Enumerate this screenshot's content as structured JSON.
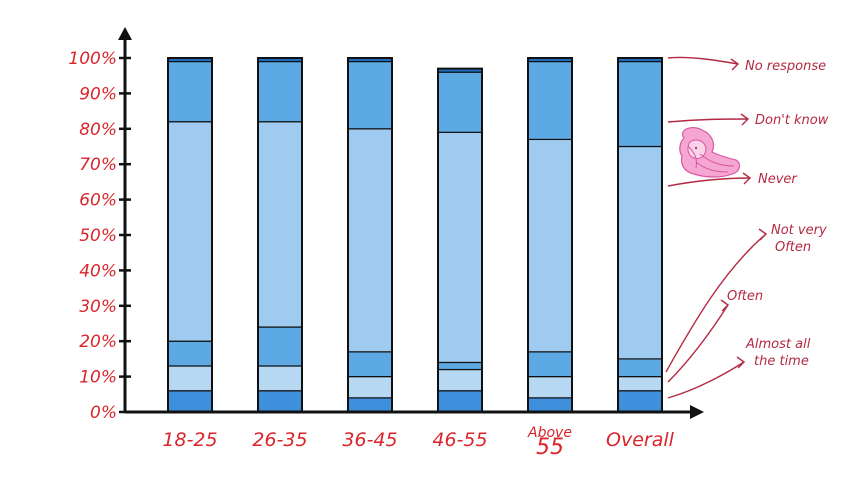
{
  "chart_data": {
    "type": "bar",
    "stacked": true,
    "categories": [
      [
        "18-25"
      ],
      [
        "26-35"
      ],
      [
        "36-45"
      ],
      [
        "46-55"
      ],
      [
        "Above",
        "55"
      ],
      [
        "Overall"
      ]
    ],
    "yticks": [
      "0%",
      "10%",
      "20%",
      "30%",
      "40%",
      "50%",
      "60%",
      "70%",
      "80%",
      "90%",
      "100%"
    ],
    "ylim": [
      0,
      100
    ],
    "series": [
      {
        "name": "Almost all the time",
        "color": "#3e8fdc",
        "values": [
          6,
          6,
          4,
          6,
          4,
          6
        ]
      },
      {
        "name": "Often",
        "color": "#b6d8f2",
        "values": [
          7,
          7,
          6,
          6,
          6,
          4
        ]
      },
      {
        "name": "Not very Often",
        "color": "#5da9e4",
        "values": [
          7,
          11,
          7,
          2,
          7,
          5
        ]
      },
      {
        "name": "Never",
        "color": "#9ecbef",
        "values": [
          62,
          58,
          63,
          65,
          60,
          60
        ]
      },
      {
        "name": "Don't know",
        "color": "#5da9e4",
        "values": [
          17,
          17,
          19,
          17,
          22,
          24
        ]
      },
      {
        "name": "No response",
        "color": "#1f6fc4",
        "values": [
          1,
          1,
          1,
          1,
          1,
          1
        ]
      }
    ],
    "legend": {
      "placement": "right",
      "labels": [
        [
          "No response"
        ],
        [
          "Don't know"
        ],
        [
          "Never"
        ],
        [
          "Not very",
          "Often"
        ],
        [
          "Often"
        ],
        [
          "Almost all",
          "the time"
        ]
      ]
    },
    "grid": false,
    "title": "",
    "xlabel": "",
    "ylabel": ""
  },
  "colors": {
    "text": "#d9252b",
    "legend_text": "#b42a43",
    "axis": "#111111",
    "figure_hair": "#f08cc8"
  },
  "decoration": "pink-haired-figure-icon"
}
